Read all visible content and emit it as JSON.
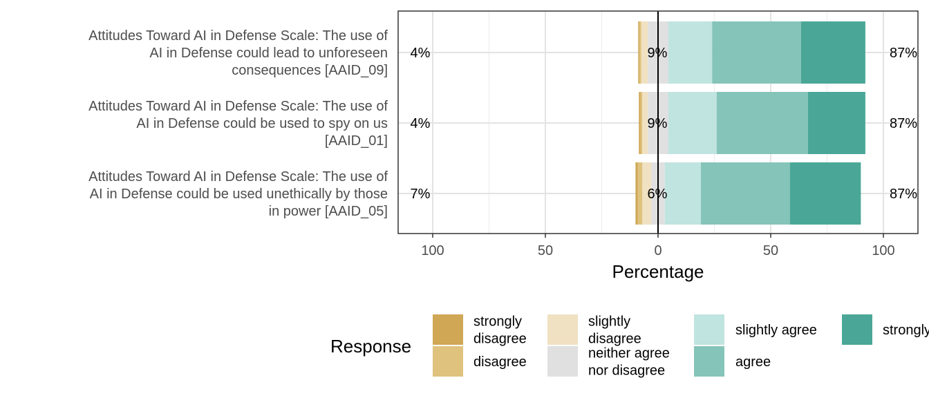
{
  "chart_data": {
    "type": "bar",
    "orientation": "horizontal",
    "stacked": "diverging",
    "xlabel": "Percentage",
    "xlim": [
      -100,
      100
    ],
    "x_ticks": [
      -100,
      -50,
      0,
      50,
      100
    ],
    "x_tick_labels": [
      "100",
      "50",
      "0",
      "50",
      "100"
    ],
    "grid": true,
    "categories": [
      [
        "Attitudes Toward AI in Defense Scale: The use of",
        "AI in Defense could lead to unforeseen",
        "consequences [AAID_09]"
      ],
      [
        "Attitudes Toward AI in Defense Scale: The use of",
        "AI in Defense could be used to spy on us",
        "[AAID_01]"
      ],
      [
        "Attitudes Toward AI in Defense Scale: The use of",
        "AI in Defense could be used unethically by those",
        "in power [AAID_05]"
      ]
    ],
    "series": [
      {
        "name": "strongly disagree",
        "color": "#cfa755",
        "values": [
          0.5,
          0.7,
          1.0
        ]
      },
      {
        "name": "disagree",
        "color": "#dfc27d",
        "values": [
          0.8,
          0.8,
          2.0
        ]
      },
      {
        "name": "slightly disagree",
        "color": "#f0e1c2",
        "values": [
          3.0,
          2.5,
          4.0
        ]
      },
      {
        "name": "neither agree nor disagree",
        "color": "#e0e0e0",
        "values": [
          9.0,
          9.0,
          6.0
        ]
      },
      {
        "name": "slightly agree",
        "color": "#c0e4df",
        "values": [
          19.5,
          21.5,
          16.0
        ]
      },
      {
        "name": "agree",
        "color": "#85c4b9",
        "values": [
          39.5,
          40.5,
          39.5
        ]
      },
      {
        "name": "strongly agree",
        "color": "#4aa797",
        "values": [
          28.5,
          25.5,
          31.5
        ]
      }
    ],
    "left_labels": [
      "4%",
      "4%",
      "7%"
    ],
    "center_labels": [
      "9%",
      "9%",
      "6%"
    ],
    "right_labels": [
      "87%",
      "87%",
      "87%"
    ],
    "legend": {
      "title": "Response",
      "position": "bottom",
      "entries": [
        [
          "strongly",
          "disagree"
        ],
        [
          "disagree"
        ],
        [
          "slightly",
          "disagree"
        ],
        [
          "neither agree",
          "nor disagree"
        ],
        [
          "slightly agree"
        ],
        [
          "agree"
        ],
        [
          "strongly agree"
        ]
      ]
    }
  }
}
